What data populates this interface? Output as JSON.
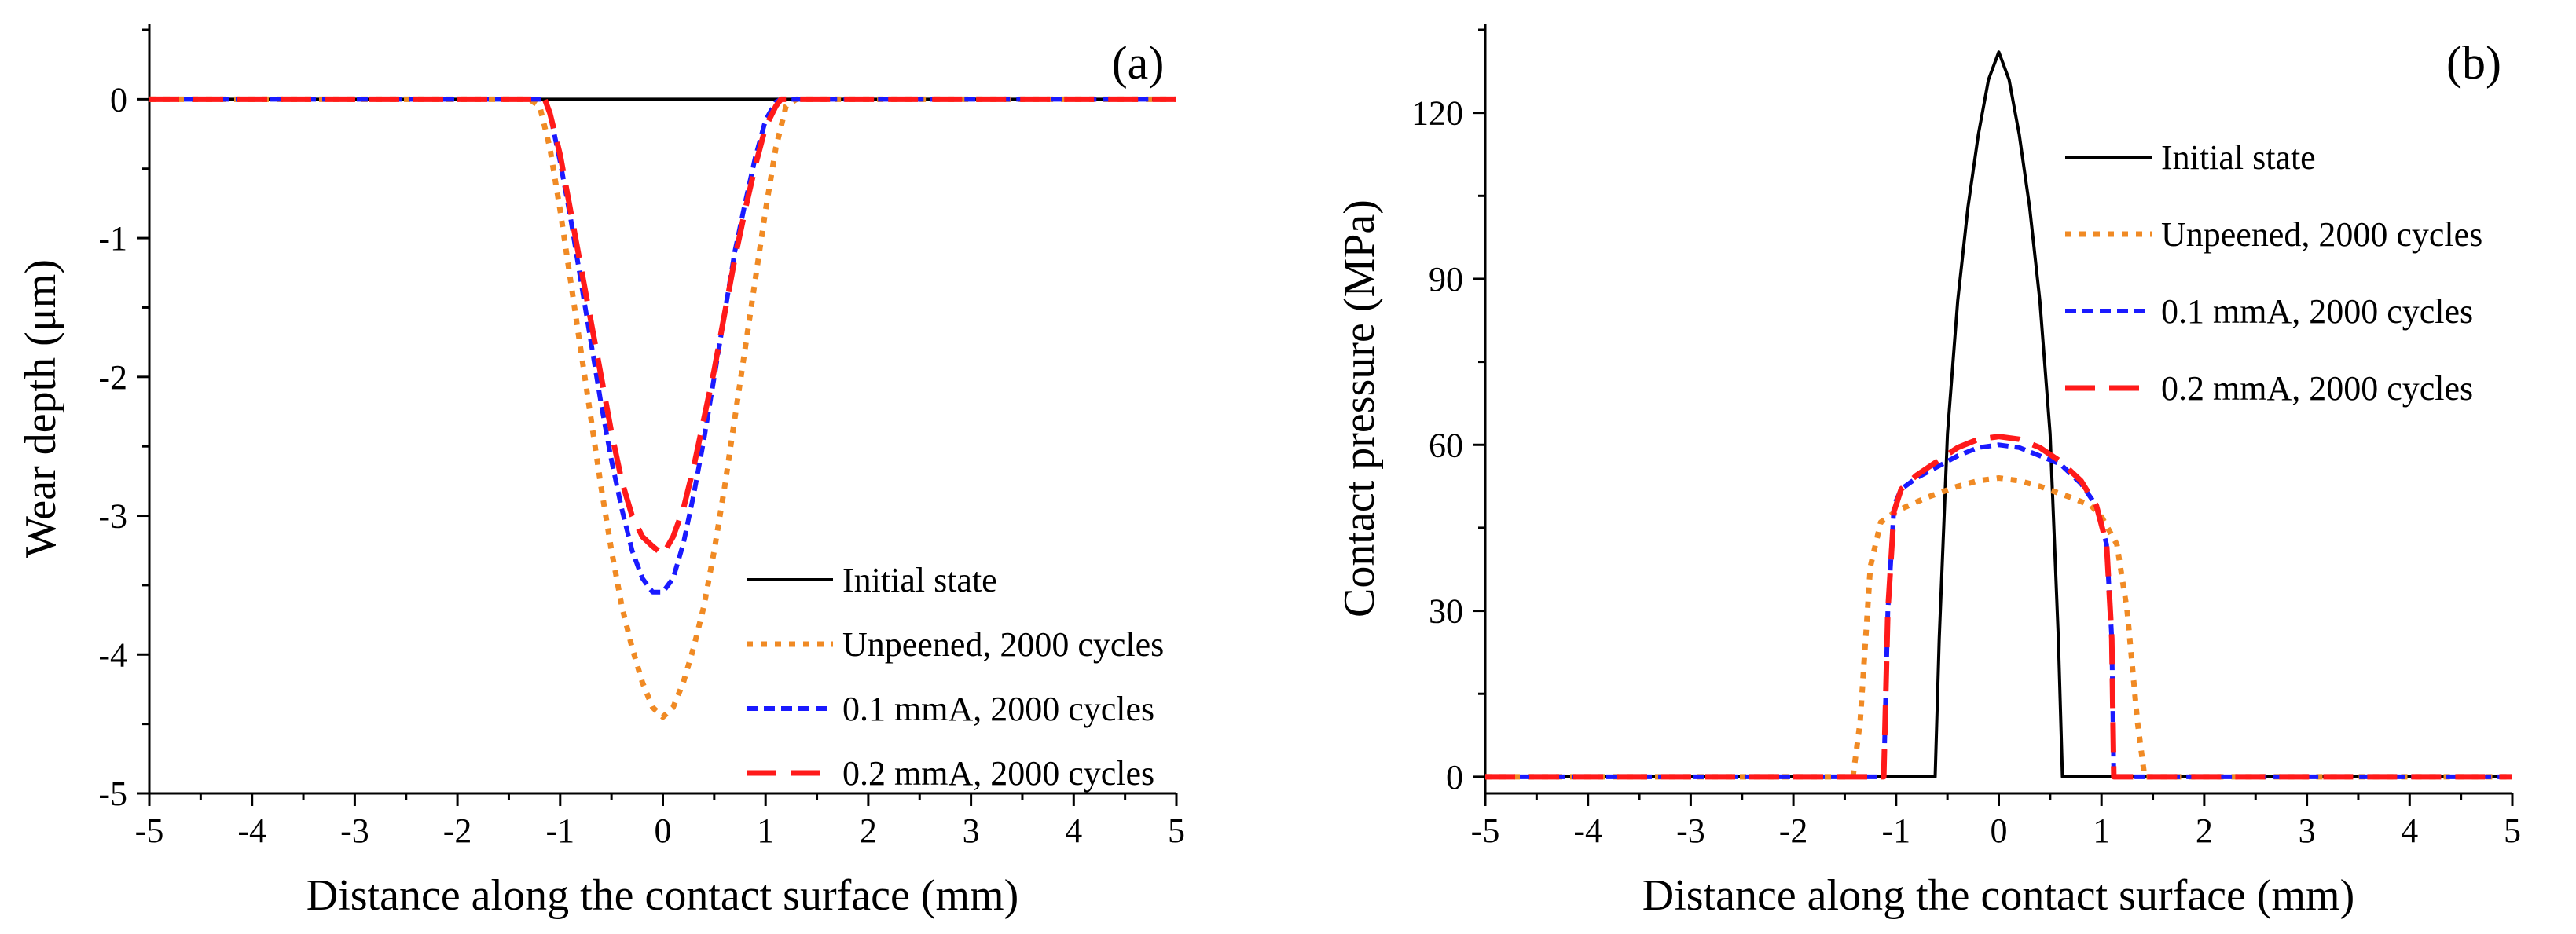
{
  "chart_data": [
    {
      "type": "line",
      "panel_label": "(a)",
      "xlabel": "Distance along the contact surface (mm)",
      "ylabel": "Wear depth (μm)",
      "xlim": [
        -5,
        5
      ],
      "ylim": [
        -5,
        0.5
      ],
      "xticks": [
        -5,
        -4,
        -3,
        -2,
        -1,
        0,
        1,
        2,
        3,
        4,
        5
      ],
      "yticks": [
        -5,
        -4,
        -3,
        -2,
        -1,
        0
      ],
      "legend_position": "lower-right",
      "series": [
        {
          "name": "Initial state",
          "color": "#000000",
          "style": "solid",
          "x": [
            -5,
            5
          ],
          "y": [
            0,
            0
          ]
        },
        {
          "name": "Unpeened, 2000 cycles",
          "color": "#f08a24",
          "style": "dotted",
          "x": [
            -5,
            -1.3,
            -1.2,
            -1.1,
            -1.0,
            -0.9,
            -0.8,
            -0.7,
            -0.6,
            -0.5,
            -0.4,
            -0.3,
            -0.2,
            -0.1,
            0,
            0.1,
            0.2,
            0.3,
            0.4,
            0.5,
            0.6,
            0.7,
            0.8,
            0.9,
            1.0,
            1.1,
            1.2,
            1.3,
            1.4,
            5
          ],
          "y": [
            0,
            0,
            -0.05,
            -0.35,
            -0.8,
            -1.3,
            -1.8,
            -2.3,
            -2.8,
            -3.25,
            -3.65,
            -3.95,
            -4.2,
            -4.38,
            -4.45,
            -4.38,
            -4.2,
            -3.95,
            -3.65,
            -3.25,
            -2.8,
            -2.3,
            -1.8,
            -1.3,
            -0.8,
            -0.35,
            -0.05,
            0,
            0,
            0
          ]
        },
        {
          "name": "0.1 mmA, 2000 cycles",
          "color": "#1a1aff",
          "style": "short-dash",
          "x": [
            -5,
            -1.15,
            -1.1,
            -1.0,
            -0.9,
            -0.8,
            -0.7,
            -0.6,
            -0.5,
            -0.4,
            -0.3,
            -0.2,
            -0.1,
            0,
            0.1,
            0.2,
            0.3,
            0.4,
            0.5,
            0.6,
            0.7,
            0.8,
            0.9,
            1.0,
            1.1,
            1.15,
            5
          ],
          "y": [
            0,
            0,
            -0.1,
            -0.45,
            -0.85,
            -1.3,
            -1.75,
            -2.2,
            -2.6,
            -2.95,
            -3.25,
            -3.45,
            -3.55,
            -3.55,
            -3.45,
            -3.2,
            -2.85,
            -2.45,
            -2.0,
            -1.55,
            -1.1,
            -0.75,
            -0.42,
            -0.15,
            -0.02,
            0,
            0
          ]
        },
        {
          "name": "0.2 mmA, 2000 cycles",
          "color": "#ff1a1a",
          "style": "long-dash",
          "x": [
            -5,
            -1.15,
            -1.1,
            -1.0,
            -0.9,
            -0.8,
            -0.7,
            -0.6,
            -0.5,
            -0.4,
            -0.3,
            -0.2,
            -0.1,
            0,
            0.1,
            0.2,
            0.3,
            0.4,
            0.5,
            0.6,
            0.7,
            0.8,
            0.9,
            1.0,
            1.1,
            1.15,
            5
          ],
          "y": [
            0,
            0,
            -0.1,
            -0.4,
            -0.8,
            -1.2,
            -1.6,
            -2.0,
            -2.4,
            -2.75,
            -3.0,
            -3.15,
            -3.22,
            -3.28,
            -3.15,
            -2.95,
            -2.65,
            -2.3,
            -1.95,
            -1.55,
            -1.15,
            -0.8,
            -0.48,
            -0.2,
            -0.05,
            0,
            0
          ]
        }
      ]
    },
    {
      "type": "line",
      "panel_label": "(b)",
      "xlabel": "Distance along the contact surface (mm)",
      "ylabel": "Contact pressure (MPa)",
      "xlim": [
        -5,
        5
      ],
      "ylim": [
        -3,
        135
      ],
      "xticks": [
        -5,
        -4,
        -3,
        -2,
        -1,
        0,
        1,
        2,
        3,
        4,
        5
      ],
      "yticks": [
        0,
        30,
        60,
        90,
        120
      ],
      "legend_position": "upper-right",
      "series": [
        {
          "name": "Initial state",
          "color": "#000000",
          "style": "solid",
          "x": [
            -5,
            -0.62,
            -0.58,
            -0.5,
            -0.4,
            -0.3,
            -0.2,
            -0.1,
            0,
            0.1,
            0.2,
            0.3,
            0.4,
            0.5,
            0.58,
            0.62,
            5
          ],
          "y": [
            0,
            0,
            25,
            62,
            86,
            103,
            116,
            126,
            131,
            126,
            116,
            103,
            86,
            62,
            25,
            0,
            0
          ]
        },
        {
          "name": "Unpeened, 2000 cycles",
          "color": "#f08a24",
          "style": "dotted",
          "x": [
            -5,
            -1.42,
            -1.35,
            -1.25,
            -1.15,
            -1.0,
            -0.7,
            -0.4,
            -0.2,
            0,
            0.2,
            0.4,
            0.7,
            0.9,
            1.0,
            1.15,
            1.25,
            1.35,
            1.42,
            5
          ],
          "y": [
            0,
            0,
            10,
            38,
            46,
            48,
            50.5,
            52.5,
            53.5,
            54,
            53.5,
            52.5,
            50.5,
            49,
            47,
            42,
            30,
            10,
            0,
            0
          ]
        },
        {
          "name": "0.1 mmA, 2000 cycles",
          "color": "#1a1aff",
          "style": "short-dash",
          "x": [
            -5,
            -1.12,
            -1.08,
            -1.02,
            -0.95,
            -0.8,
            -0.6,
            -0.4,
            -0.2,
            0,
            0.2,
            0.4,
            0.6,
            0.8,
            0.95,
            1.05,
            1.1,
            1.12,
            5
          ],
          "y": [
            0,
            0,
            30,
            49,
            52,
            54,
            56,
            58,
            59.5,
            60,
            59.5,
            58,
            56.5,
            53,
            49,
            42,
            25,
            0,
            0
          ]
        },
        {
          "name": "0.2 mmA, 2000 cycles",
          "color": "#ff1a1a",
          "style": "long-dash",
          "x": [
            -5,
            -1.12,
            -1.08,
            -1.02,
            -0.95,
            -0.8,
            -0.6,
            -0.4,
            -0.2,
            0,
            0.2,
            0.4,
            0.6,
            0.8,
            0.95,
            1.05,
            1.1,
            1.12,
            5
          ],
          "y": [
            0,
            0,
            30,
            48,
            52,
            54.5,
            57,
            59.5,
            61,
            61.5,
            61,
            59.5,
            57,
            53.5,
            49,
            42,
            25,
            0,
            0
          ]
        }
      ]
    }
  ]
}
